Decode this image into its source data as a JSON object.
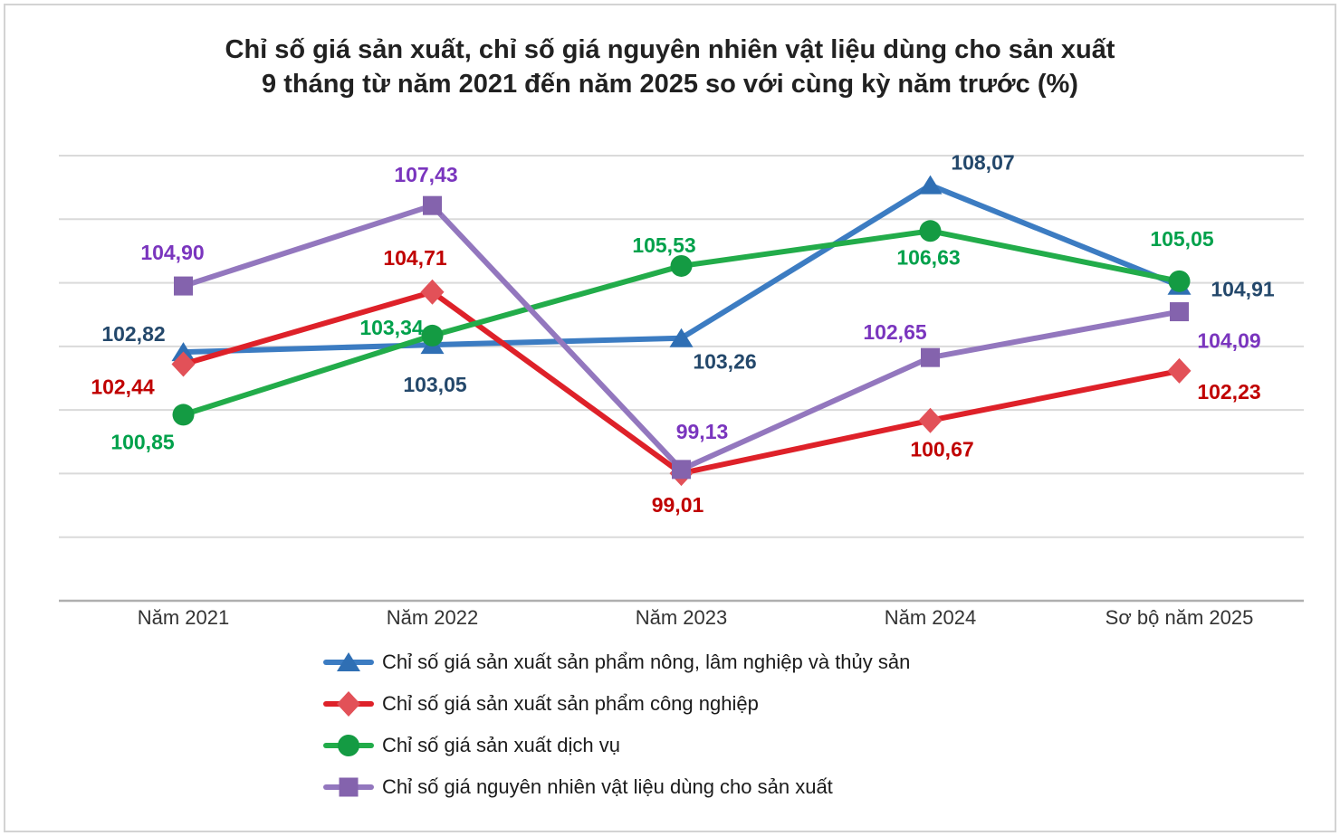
{
  "title": {
    "line1": "Chỉ số giá sản xuất, chỉ số giá nguyên nhiên vật liệu dùng cho sản xuất",
    "line2": "9 tháng từ năm 2021 đến năm 2025 so với cùng kỳ năm trước (%)"
  },
  "chart_data": {
    "type": "line",
    "categories": [
      "Năm 2021",
      "Năm 2022",
      "Năm 2023",
      "Năm 2024",
      "Sơ bộ năm 2025"
    ],
    "series": [
      {
        "name": "Chỉ số giá sản xuất sản phẩm nông, lâm nghiệp và thủy sản",
        "marker": "triangle",
        "color": "#3c7cc2",
        "marker_color": "#2f6fb4",
        "label_color": "#24486b",
        "values": [
          102.82,
          103.05,
          103.26,
          108.07,
          104.91
        ]
      },
      {
        "name": "Chỉ số giá sản xuất sản phẩm công nghiệp",
        "marker": "diamond",
        "color": "#de2129",
        "marker_color": "#e25158",
        "label_color": "#c00000",
        "values": [
          102.44,
          104.71,
          99.01,
          100.67,
          102.23
        ]
      },
      {
        "name": "Chỉ số giá sản xuất dịch vụ",
        "marker": "circle",
        "color": "#22ac4a",
        "marker_color": "#149b43",
        "label_color": "#00a14b",
        "values": [
          100.85,
          103.34,
          105.53,
          106.63,
          105.05
        ]
      },
      {
        "name": "Chỉ số giá nguyên nhiên vật liệu dùng cho sản xuất",
        "marker": "square",
        "color": "#9377be",
        "marker_color": "#8463ad",
        "label_color": "#7a35be",
        "values": [
          104.9,
          107.43,
          99.13,
          102.65,
          104.09
        ]
      }
    ],
    "ylim": [
      95,
      109
    ],
    "y_gridline_interval": 2,
    "grid": true,
    "y_axis_labels_visible": false,
    "legend_position": "bottom-left",
    "decimal_separator": ",",
    "label_format": "0,00",
    "colors": {
      "gridline": "#dadada",
      "axis_line": "#afafaf",
      "category_label": "#333333",
      "title": "#212121"
    }
  }
}
